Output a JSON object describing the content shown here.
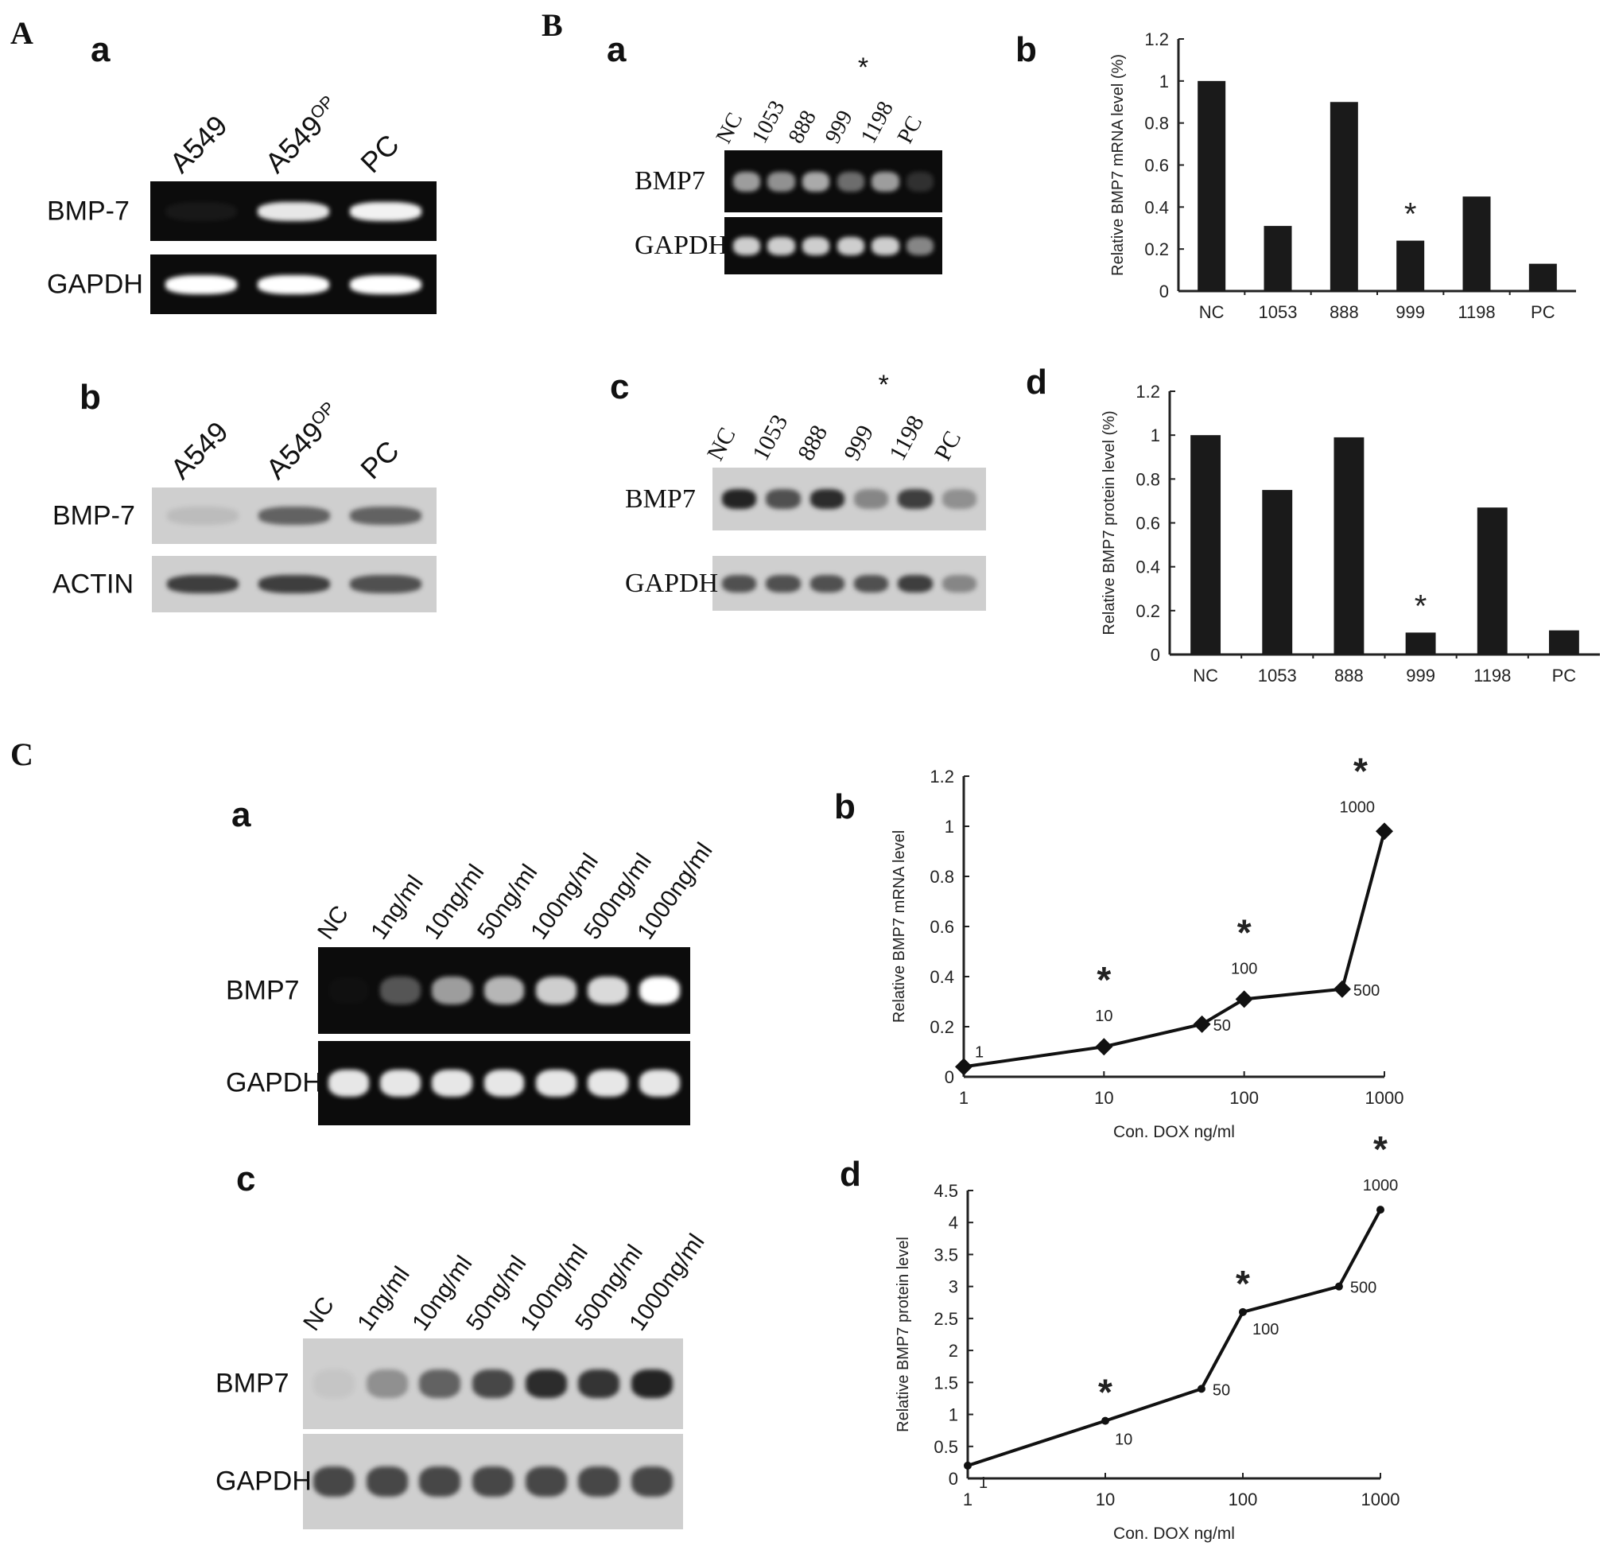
{
  "panels": {
    "A": "A",
    "B": "B",
    "C": "C",
    "A_a": "a",
    "A_b": "b",
    "B_a": "a",
    "B_b": "b",
    "B_c": "c",
    "B_d": "d",
    "C_a": "a",
    "C_b": "b",
    "C_c": "c",
    "C_d": "d"
  },
  "gels": {
    "A_a": {
      "type": "agarose",
      "lanes": [
        {
          "text": "A549",
          "sup": ""
        },
        {
          "text": "A549",
          "sup": "OP"
        },
        {
          "text": "PC",
          "sup": ""
        }
      ],
      "rows": [
        {
          "label": "BMP-7",
          "intensity": [
            0.05,
            0.9,
            0.95
          ]
        },
        {
          "label": "GAPDH",
          "intensity": [
            1,
            1,
            1
          ]
        }
      ]
    },
    "A_b": {
      "type": "western",
      "lanes": [
        {
          "text": "A549",
          "sup": ""
        },
        {
          "text": "A549",
          "sup": "OP"
        },
        {
          "text": "PC",
          "sup": ""
        }
      ],
      "rows": [
        {
          "label": "BMP-7",
          "intensity": [
            0.1,
            0.6,
            0.6
          ]
        },
        {
          "label": "ACTIN",
          "intensity": [
            0.8,
            0.8,
            0.7
          ]
        }
      ]
    },
    "B_a": {
      "type": "agarose",
      "lanes": [
        {
          "text": "NC",
          "sup": ""
        },
        {
          "text": "1053",
          "sup": ""
        },
        {
          "text": "888",
          "sup": ""
        },
        {
          "text": "999",
          "sup": "",
          "star": "*"
        },
        {
          "text": "1198",
          "sup": ""
        },
        {
          "text": "PC",
          "sup": ""
        }
      ],
      "rows": [
        {
          "label": "BMP7",
          "intensity": [
            0.6,
            0.55,
            0.65,
            0.4,
            0.6,
            0.15
          ]
        },
        {
          "label": "GAPDH",
          "intensity": [
            0.8,
            0.8,
            0.8,
            0.8,
            0.8,
            0.5
          ]
        }
      ]
    },
    "B_c": {
      "type": "western",
      "lanes": [
        {
          "text": "NC",
          "sup": ""
        },
        {
          "text": "1053",
          "sup": ""
        },
        {
          "text": "888",
          "sup": ""
        },
        {
          "text": "999",
          "sup": "",
          "star": "*"
        },
        {
          "text": "1198",
          "sup": ""
        },
        {
          "text": "PC",
          "sup": ""
        }
      ],
      "rows": [
        {
          "label": "BMP7",
          "intensity": [
            0.95,
            0.7,
            0.9,
            0.4,
            0.8,
            0.35
          ]
        },
        {
          "label": "GAPDH",
          "intensity": [
            0.7,
            0.7,
            0.7,
            0.7,
            0.8,
            0.4
          ]
        }
      ]
    },
    "C_a": {
      "type": "agarose",
      "lanes": [
        {
          "text": "NC",
          "sup": ""
        },
        {
          "text": "1ng/ml",
          "sup": ""
        },
        {
          "text": "10ng/ml",
          "sup": ""
        },
        {
          "text": "50ng/ml",
          "sup": ""
        },
        {
          "text": "100ng/ml",
          "sup": ""
        },
        {
          "text": "500ng/ml",
          "sup": ""
        },
        {
          "text": "1000ng/ml",
          "sup": ""
        }
      ],
      "rows": [
        {
          "label": "BMP7",
          "intensity": [
            0.02,
            0.3,
            0.6,
            0.7,
            0.8,
            0.85,
            1.0
          ]
        },
        {
          "label": "GAPDH",
          "intensity": [
            0.9,
            0.9,
            0.9,
            0.9,
            0.9,
            0.9,
            0.9
          ]
        }
      ]
    },
    "C_c": {
      "type": "western",
      "lanes": [
        {
          "text": "NC",
          "sup": ""
        },
        {
          "text": "1ng/ml",
          "sup": ""
        },
        {
          "text": "10ng/ml",
          "sup": ""
        },
        {
          "text": "50ng/ml",
          "sup": ""
        },
        {
          "text": "100ng/ml",
          "sup": ""
        },
        {
          "text": "500ng/ml",
          "sup": ""
        },
        {
          "text": "1000ng/ml",
          "sup": ""
        }
      ],
      "rows": [
        {
          "label": "BMP7",
          "intensity": [
            0.05,
            0.35,
            0.6,
            0.75,
            0.9,
            0.85,
            0.95
          ]
        },
        {
          "label": "GAPDH",
          "intensity": [
            0.75,
            0.75,
            0.75,
            0.75,
            0.75,
            0.75,
            0.75
          ]
        }
      ]
    }
  },
  "chart_data": [
    {
      "id": "B_b",
      "type": "bar",
      "categories": [
        "NC",
        "1053",
        "888",
        "999",
        "1198",
        "PC"
      ],
      "values": [
        1.0,
        0.31,
        0.9,
        0.24,
        0.45,
        0.13
      ],
      "annotations": [
        {
          "category": "999",
          "text": "*"
        }
      ],
      "ylabel": "Relative BMP7  mRNA level (%)",
      "xlabel": "",
      "ylim": [
        0,
        1.2
      ],
      "yticks": [
        "0",
        "0.2",
        "0.4",
        "0.6",
        "0.8",
        "1",
        "1.2"
      ],
      "grid": false
    },
    {
      "id": "B_d",
      "type": "bar",
      "categories": [
        "NC",
        "1053",
        "888",
        "999",
        "1198",
        "PC"
      ],
      "values": [
        1.0,
        0.75,
        0.99,
        0.1,
        0.67,
        0.11
      ],
      "annotations": [
        {
          "category": "999",
          "text": "*"
        }
      ],
      "ylabel": "Relative BMP7  protein level (%)",
      "xlabel": "",
      "ylim": [
        0,
        1.2
      ],
      "yticks": [
        "0",
        "0.2",
        "0.4",
        "0.6",
        "0.8",
        "1",
        "1.2"
      ],
      "grid": false
    },
    {
      "id": "C_b",
      "type": "line",
      "xscale": "log",
      "x": [
        1,
        10,
        50,
        100,
        500,
        1000
      ],
      "y": [
        0.04,
        0.12,
        0.21,
        0.31,
        0.35,
        0.98
      ],
      "point_labels": [
        "1",
        "10",
        "50",
        "100",
        "500",
        "1000"
      ],
      "significant": [
        false,
        true,
        false,
        true,
        false,
        true
      ],
      "star": "*",
      "marker": "diamond",
      "xlabel": "Con. DOX ng/ml",
      "ylabel": "Relative BMP7  mRNA level",
      "xlim": [
        1,
        1000
      ],
      "xticks": [
        "1",
        "10",
        "100",
        "1000"
      ],
      "ylim": [
        0,
        1.2
      ],
      "yticks": [
        "0",
        "0.2",
        "0.4",
        "0.6",
        "0.8",
        "1",
        "1.2"
      ],
      "grid": false
    },
    {
      "id": "C_d",
      "type": "line",
      "xscale": "log",
      "x": [
        1,
        10,
        50,
        100,
        500,
        1000
      ],
      "y": [
        0.2,
        0.9,
        1.4,
        2.6,
        3.0,
        4.2
      ],
      "point_labels": [
        "1",
        "10",
        "50",
        "100",
        "500",
        "1000"
      ],
      "significant": [
        false,
        true,
        false,
        true,
        false,
        true
      ],
      "star": "*",
      "marker": "dot",
      "xlabel": "Con. DOX ng/ml",
      "ylabel": "Relative BMP7  protein level",
      "xlim": [
        1,
        1000
      ],
      "xticks": [
        "1",
        "10",
        "100",
        "1000"
      ],
      "ylim": [
        0,
        4.5
      ],
      "yticks": [
        "0",
        "0.5",
        "1",
        "1.5",
        "2",
        "2.5",
        "3",
        "3.5",
        "4",
        "4.5"
      ],
      "grid": false
    }
  ]
}
